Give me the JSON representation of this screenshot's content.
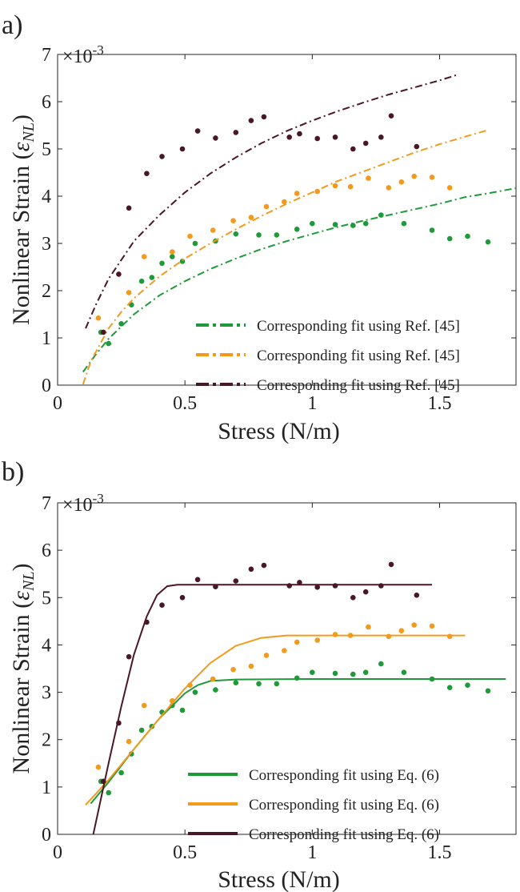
{
  "chart_data": [
    {
      "panel_label": "a)",
      "type": "scatter",
      "xlabel": "Stress (N/m)",
      "ylabel": "Nonlinear Strain (",
      "ylabel_symbol": "ε",
      "ylabel_sub": "NL",
      "ylabel_close": ")",
      "exponent_prefix": "×10",
      "exponent_power": "-3",
      "xlim": [
        0,
        1.8
      ],
      "ylim": [
        0,
        7
      ],
      "x_ticks": [
        0,
        0.5,
        1,
        1.5
      ],
      "x_tick_labels": [
        "0",
        "0.5",
        "1",
        "1.5"
      ],
      "y_ticks": [
        0,
        1,
        2,
        3,
        4,
        5,
        6,
        7
      ],
      "y_tick_labels": [
        "0",
        "1",
        "2",
        "3",
        "4",
        "5",
        "6",
        "7"
      ],
      "grid": false,
      "legend_position": "bottom-right",
      "line_style": "dashdot",
      "series": [
        {
          "color": "#1f9a3a",
          "legend": "Corresponding fit using Ref. [45]",
          "points": [
            [
              0.17,
              1.12
            ],
            [
              0.2,
              0.88
            ],
            [
              0.25,
              1.3
            ],
            [
              0.29,
              1.7
            ],
            [
              0.33,
              2.2
            ],
            [
              0.37,
              2.28
            ],
            [
              0.41,
              2.58
            ],
            [
              0.45,
              2.72
            ],
            [
              0.49,
              2.62
            ],
            [
              0.54,
              3.0
            ],
            [
              0.62,
              3.05
            ],
            [
              0.7,
              3.2
            ],
            [
              0.79,
              3.18
            ],
            [
              0.86,
              3.18
            ],
            [
              0.94,
              3.3
            ],
            [
              1.0,
              3.42
            ],
            [
              1.09,
              3.4
            ],
            [
              1.16,
              3.38
            ],
            [
              1.21,
              3.42
            ],
            [
              1.27,
              3.6
            ],
            [
              1.36,
              3.42
            ],
            [
              1.47,
              3.28
            ],
            [
              1.54,
              3.1
            ],
            [
              1.61,
              3.15
            ],
            [
              1.69,
              3.03
            ]
          ],
          "fit": [
            [
              0.1,
              0.28
            ],
            [
              0.15,
              0.65
            ],
            [
              0.2,
              0.98
            ],
            [
              0.3,
              1.5
            ],
            [
              0.4,
              1.9
            ],
            [
              0.5,
              2.2
            ],
            [
              0.6,
              2.46
            ],
            [
              0.7,
              2.68
            ],
            [
              0.8,
              2.88
            ],
            [
              0.9,
              3.05
            ],
            [
              1.0,
              3.2
            ],
            [
              1.1,
              3.35
            ],
            [
              1.2,
              3.48
            ],
            [
              1.3,
              3.6
            ],
            [
              1.4,
              3.72
            ],
            [
              1.5,
              3.84
            ],
            [
              1.6,
              3.98
            ],
            [
              1.7,
              4.07
            ],
            [
              1.8,
              4.17
            ]
          ]
        },
        {
          "color": "#f39a1c",
          "legend": "Corresponding fit using Ref. [45]",
          "points": [
            [
              0.16,
              1.42
            ],
            [
              0.28,
              1.96
            ],
            [
              0.34,
              2.72
            ],
            [
              0.45,
              2.82
            ],
            [
              0.52,
              3.15
            ],
            [
              0.61,
              3.28
            ],
            [
              0.69,
              3.48
            ],
            [
              0.76,
              3.55
            ],
            [
              0.82,
              3.78
            ],
            [
              0.89,
              3.88
            ],
            [
              0.94,
              4.06
            ],
            [
              1.02,
              4.1
            ],
            [
              1.09,
              4.22
            ],
            [
              1.15,
              4.2
            ],
            [
              1.22,
              4.38
            ],
            [
              1.3,
              4.18
            ],
            [
              1.35,
              4.3
            ],
            [
              1.4,
              4.42
            ],
            [
              1.47,
              4.4
            ],
            [
              1.54,
              4.18
            ]
          ],
          "fit": [
            [
              0.1,
              0.02
            ],
            [
              0.13,
              0.5
            ],
            [
              0.17,
              0.9
            ],
            [
              0.2,
              1.2
            ],
            [
              0.25,
              1.55
            ],
            [
              0.3,
              1.84
            ],
            [
              0.4,
              2.3
            ],
            [
              0.5,
              2.68
            ],
            [
              0.6,
              3.0
            ],
            [
              0.7,
              3.3
            ],
            [
              0.8,
              3.58
            ],
            [
              0.9,
              3.84
            ],
            [
              1.0,
              4.08
            ],
            [
              1.1,
              4.32
            ],
            [
              1.2,
              4.52
            ],
            [
              1.3,
              4.72
            ],
            [
              1.4,
              4.92
            ],
            [
              1.5,
              5.1
            ],
            [
              1.6,
              5.26
            ],
            [
              1.69,
              5.4
            ]
          ]
        },
        {
          "color": "#4a1726",
          "legend": "Corresponding fit using Ref. [45]",
          "points": [
            [
              0.18,
              1.12
            ],
            [
              0.24,
              2.35
            ],
            [
              0.28,
              3.75
            ],
            [
              0.35,
              4.48
            ],
            [
              0.41,
              4.84
            ],
            [
              0.49,
              5.0
            ],
            [
              0.55,
              5.38
            ],
            [
              0.62,
              5.23
            ],
            [
              0.7,
              5.35
            ],
            [
              0.76,
              5.6
            ],
            [
              0.81,
              5.68
            ],
            [
              0.91,
              5.25
            ],
            [
              0.95,
              5.32
            ],
            [
              1.02,
              5.22
            ],
            [
              1.09,
              5.25
            ],
            [
              1.16,
              5.0
            ],
            [
              1.21,
              5.12
            ],
            [
              1.27,
              5.25
            ],
            [
              1.31,
              5.7
            ],
            [
              1.41,
              5.05
            ]
          ],
          "fit": [
            [
              0.11,
              1.2
            ],
            [
              0.15,
              1.7
            ],
            [
              0.2,
              2.25
            ],
            [
              0.3,
              3.05
            ],
            [
              0.4,
              3.6
            ],
            [
              0.5,
              4.08
            ],
            [
              0.6,
              4.48
            ],
            [
              0.7,
              4.82
            ],
            [
              0.8,
              5.12
            ],
            [
              0.9,
              5.38
            ],
            [
              1.0,
              5.6
            ],
            [
              1.1,
              5.8
            ],
            [
              1.2,
              5.98
            ],
            [
              1.3,
              6.15
            ],
            [
              1.4,
              6.3
            ],
            [
              1.5,
              6.45
            ],
            [
              1.57,
              6.57
            ]
          ]
        }
      ]
    },
    {
      "panel_label": "b)",
      "type": "scatter",
      "xlabel": "Stress (N/m)",
      "ylabel": "Nonlinear Strain (",
      "ylabel_symbol": "ε",
      "ylabel_sub": "NL",
      "ylabel_close": ")",
      "exponent_prefix": "×10",
      "exponent_power": "-3",
      "xlim": [
        0,
        1.8
      ],
      "ylim": [
        0,
        7
      ],
      "x_ticks": [
        0,
        0.5,
        1,
        1.5
      ],
      "x_tick_labels": [
        "0",
        "0.5",
        "1",
        "1.5"
      ],
      "y_ticks": [
        0,
        1,
        2,
        3,
        4,
        5,
        6,
        7
      ],
      "y_tick_labels": [
        "0",
        "1",
        "2",
        "3",
        "4",
        "5",
        "6",
        "7"
      ],
      "grid": false,
      "legend_position": "bottom-right",
      "line_style": "solid",
      "series": [
        {
          "color": "#1f9a3a",
          "legend": "Corresponding fit using Eq. (6)",
          "points": [
            [
              0.17,
              1.12
            ],
            [
              0.2,
              0.88
            ],
            [
              0.25,
              1.3
            ],
            [
              0.29,
              1.7
            ],
            [
              0.33,
              2.2
            ],
            [
              0.37,
              2.28
            ],
            [
              0.41,
              2.58
            ],
            [
              0.45,
              2.72
            ],
            [
              0.49,
              2.62
            ],
            [
              0.54,
              3.0
            ],
            [
              0.62,
              3.05
            ],
            [
              0.7,
              3.2
            ],
            [
              0.79,
              3.18
            ],
            [
              0.86,
              3.18
            ],
            [
              0.94,
              3.3
            ],
            [
              1.0,
              3.42
            ],
            [
              1.09,
              3.4
            ],
            [
              1.16,
              3.38
            ],
            [
              1.21,
              3.42
            ],
            [
              1.27,
              3.6
            ],
            [
              1.36,
              3.42
            ],
            [
              1.47,
              3.28
            ],
            [
              1.54,
              3.1
            ],
            [
              1.61,
              3.15
            ],
            [
              1.69,
              3.03
            ]
          ],
          "fit": [
            [
              0.13,
              0.65
            ],
            [
              0.2,
              1.1
            ],
            [
              0.3,
              1.8
            ],
            [
              0.4,
              2.45
            ],
            [
              0.5,
              2.98
            ],
            [
              0.55,
              3.15
            ],
            [
              0.6,
              3.24
            ],
            [
              0.7,
              3.27
            ],
            [
              1.0,
              3.28
            ],
            [
              1.4,
              3.28
            ],
            [
              1.76,
              3.28
            ]
          ]
        },
        {
          "color": "#f39a1c",
          "legend": "Corresponding fit using Eq. (6)",
          "points": [
            [
              0.16,
              1.42
            ],
            [
              0.28,
              1.96
            ],
            [
              0.34,
              2.72
            ],
            [
              0.45,
              2.82
            ],
            [
              0.52,
              3.15
            ],
            [
              0.61,
              3.28
            ],
            [
              0.69,
              3.48
            ],
            [
              0.76,
              3.55
            ],
            [
              0.82,
              3.78
            ],
            [
              0.89,
              3.88
            ],
            [
              0.94,
              4.06
            ],
            [
              1.02,
              4.1
            ],
            [
              1.09,
              4.22
            ],
            [
              1.15,
              4.2
            ],
            [
              1.22,
              4.38
            ],
            [
              1.3,
              4.18
            ],
            [
              1.35,
              4.3
            ],
            [
              1.4,
              4.42
            ],
            [
              1.47,
              4.4
            ],
            [
              1.54,
              4.18
            ]
          ],
          "fit": [
            [
              0.11,
              0.62
            ],
            [
              0.2,
              1.15
            ],
            [
              0.3,
              1.8
            ],
            [
              0.4,
              2.45
            ],
            [
              0.5,
              3.08
            ],
            [
              0.6,
              3.62
            ],
            [
              0.7,
              3.98
            ],
            [
              0.8,
              4.15
            ],
            [
              0.9,
              4.2
            ],
            [
              1.2,
              4.2
            ],
            [
              1.6,
              4.2
            ]
          ]
        },
        {
          "color": "#4a1726",
          "legend": "Corresponding fit using Eq. (6)",
          "points": [
            [
              0.18,
              1.12
            ],
            [
              0.24,
              2.35
            ],
            [
              0.28,
              3.75
            ],
            [
              0.35,
              4.48
            ],
            [
              0.41,
              4.84
            ],
            [
              0.49,
              5.0
            ],
            [
              0.55,
              5.38
            ],
            [
              0.62,
              5.23
            ],
            [
              0.7,
              5.35
            ],
            [
              0.76,
              5.6
            ],
            [
              0.81,
              5.68
            ],
            [
              0.91,
              5.25
            ],
            [
              0.95,
              5.32
            ],
            [
              1.02,
              5.22
            ],
            [
              1.09,
              5.25
            ],
            [
              1.16,
              5.0
            ],
            [
              1.21,
              5.12
            ],
            [
              1.27,
              5.25
            ],
            [
              1.31,
              5.7
            ],
            [
              1.41,
              5.05
            ]
          ],
          "fit": [
            [
              0.14,
              0.0
            ],
            [
              0.2,
              1.5
            ],
            [
              0.25,
              2.7
            ],
            [
              0.3,
              3.8
            ],
            [
              0.35,
              4.6
            ],
            [
              0.39,
              5.05
            ],
            [
              0.43,
              5.24
            ],
            [
              0.47,
              5.27
            ],
            [
              0.8,
              5.27
            ],
            [
              1.2,
              5.27
            ],
            [
              1.47,
              5.27
            ]
          ]
        }
      ]
    }
  ]
}
